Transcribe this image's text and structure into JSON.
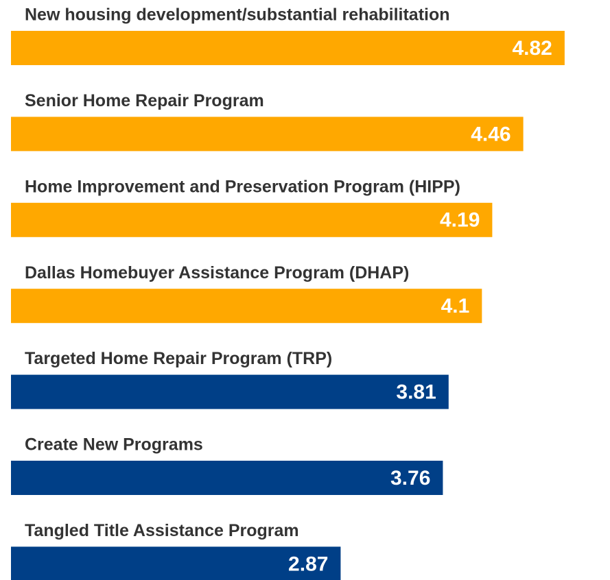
{
  "chart_data": {
    "type": "bar",
    "categories": [
      "New housing development/substantial rehabilitation",
      "Senior Home Repair Program",
      "Home Improvement and Preservation Program (HIPP)",
      "Dallas Homebuyer Assistance Program (DHAP)",
      "Targeted Home Repair Program (TRP)",
      "Create New Programs",
      "Tangled Title Assistance Program"
    ],
    "values": [
      4.82,
      4.46,
      4.19,
      4.1,
      3.81,
      3.76,
      2.87
    ],
    "colors": [
      "#ffa800",
      "#ffa800",
      "#ffa800",
      "#ffa800",
      "#003f87",
      "#003f87",
      "#003f87"
    ]
  }
}
